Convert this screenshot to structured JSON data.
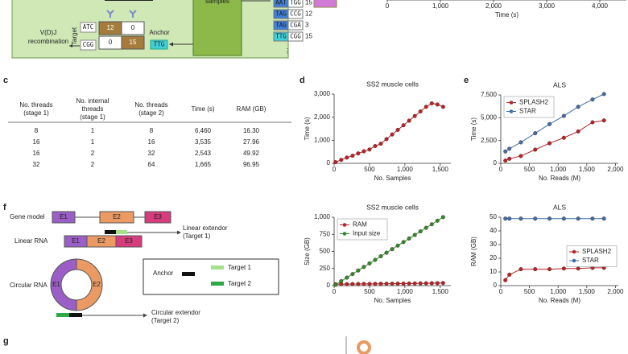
{
  "panel_labels": [
    "c",
    "d",
    "e",
    "f",
    "g"
  ],
  "diagram_a": {
    "recombination": [
      "V(D)J",
      "recombination"
    ],
    "target_label": "Target",
    "target_seqs": [
      "ATC",
      "CGG"
    ],
    "matrix": [
      "12",
      "0",
      "0",
      "15"
    ],
    "anchor_label": "Anchor",
    "anchor_seq": "TTG",
    "samples_label": "samples",
    "seq_rows": [
      [
        "AAT",
        "TGG",
        "15"
      ],
      [
        "TAG",
        "CCG",
        "12"
      ],
      [
        "TAG",
        "CGA",
        "3"
      ],
      [
        "TTG",
        "CGG",
        "15"
      ]
    ],
    "more": "⋮"
  },
  "table": {
    "headers": [
      [
        "No. threads",
        "(stage 1)"
      ],
      [
        "No. internal",
        "threads",
        "(stage 1)"
      ],
      [
        "No. threads",
        "(stage 2)"
      ],
      [
        "Time (s)"
      ],
      [
        "RAM (GB)"
      ]
    ],
    "rows": [
      [
        "8",
        "1",
        "8",
        "6,460",
        "16.30"
      ],
      [
        "16",
        "1",
        "16",
        "3,535",
        "27.96"
      ],
      [
        "16",
        "2",
        "32",
        "2,543",
        "49.92"
      ],
      [
        "32",
        "2",
        "64",
        "1,665",
        "96.95"
      ]
    ]
  },
  "diagram_f": {
    "gene_model": "Gene model",
    "linear_rna": "Linear RNA",
    "circular_rna": "Circular RNA",
    "exons": [
      "E1",
      "E2",
      "E3"
    ],
    "linear_extendor": [
      "Linear extendor",
      "(Target 1)"
    ],
    "circular_extendor": [
      "Circular extendor",
      "(Target 2)"
    ],
    "legend": [
      "Anchor",
      "Target 1",
      "Target 2"
    ]
  },
  "chart_data": [
    {
      "type": "line",
      "xlabel": "Time (s)",
      "xlim": [
        0,
        4500
      ],
      "xticks": [
        0,
        {
          "value": 1000,
          "label": "1,000"
        },
        {
          "value": 2000,
          "label": "2,000"
        },
        {
          "value": 3000,
          "label": "3,000"
        },
        {
          "value": 4000,
          "label": "4,000"
        }
      ],
      "x": [],
      "series": []
    },
    {
      "type": "line",
      "title": "SS2 muscle cells",
      "xlabel": "No. Samples",
      "ylabel": "Time (s)",
      "xlim": [
        0,
        1650
      ],
      "ylim": [
        0,
        3000
      ],
      "xticks": [
        0,
        500,
        {
          "value": 1000,
          "label": "1,000"
        },
        {
          "value": 1500,
          "label": "1,500"
        }
      ],
      "yticks": [
        0,
        {
          "value": 1000,
          "label": "1,000"
        },
        {
          "value": 2000,
          "label": "2,000"
        },
        {
          "value": 3000,
          "label": "3,000"
        }
      ],
      "x": [
        20,
        100,
        180,
        260,
        340,
        420,
        500,
        580,
        660,
        740,
        820,
        900,
        980,
        1060,
        1140,
        1220,
        1300,
        1380,
        1460,
        1540
      ],
      "series": [
        {
          "color": "#b3262b",
          "values": [
            50,
            150,
            250,
            330,
            430,
            520,
            600,
            750,
            850,
            1050,
            1250,
            1450,
            1650,
            1850,
            2050,
            2250,
            2450,
            2600,
            2550,
            2450
          ]
        }
      ]
    },
    {
      "type": "line",
      "title": "SS2 muscle cells",
      "xlabel": "No. Samples",
      "ylabel": "Size (GB)",
      "xlim": [
        0,
        1650
      ],
      "ylim": [
        0,
        1000
      ],
      "legend": "top-left",
      "xticks": [
        0,
        500,
        {
          "value": 1000,
          "label": "1,000"
        },
        {
          "value": 1500,
          "label": "1,500"
        }
      ],
      "yticks": [
        0,
        250,
        500,
        750,
        {
          "value": 1000,
          "label": "1,000"
        }
      ],
      "x": [
        20,
        100,
        180,
        260,
        340,
        420,
        500,
        580,
        660,
        740,
        820,
        900,
        980,
        1060,
        1140,
        1220,
        1300,
        1380,
        1460,
        1540
      ],
      "series": [
        {
          "name": "RAM",
          "color": "#b3262b",
          "values": [
            20,
            22,
            22,
            23,
            24,
            25,
            25,
            26,
            27,
            28,
            28,
            29,
            30,
            31,
            32,
            33,
            34,
            35,
            36,
            38
          ]
        },
        {
          "name": "Input size",
          "color": "#2f8a2f",
          "values": [
            12,
            65,
            117,
            169,
            221,
            273,
            325,
            377,
            429,
            481,
            533,
            585,
            637,
            689,
            741,
            793,
            845,
            897,
            949,
            1001
          ]
        }
      ]
    },
    {
      "type": "line",
      "title": "ALS",
      "xlabel": "No. Reads (M)",
      "ylabel": "Time (s)",
      "xlim": [
        0,
        2050
      ],
      "ylim": [
        0,
        7500
      ],
      "legend": "top-left",
      "xticks": [
        0,
        500,
        {
          "value": 1000,
          "label": "1,000"
        },
        {
          "value": 1500,
          "label": "1,500"
        },
        {
          "value": 2000,
          "label": "2,000"
        }
      ],
      "yticks": [
        0,
        {
          "value": 2500,
          "label": "2,500"
        },
        {
          "value": 5000,
          "label": "5,000"
        },
        {
          "value": 7500,
          "label": "7,500"
        }
      ],
      "x": [
        80,
        150,
        350,
        600,
        850,
        1100,
        1350,
        1600,
        1800
      ],
      "series": [
        {
          "name": "SPLASH2",
          "color": "#b3262b",
          "values": [
            300,
            500,
            800,
            1500,
            2200,
            2800,
            3500,
            4500,
            4700
          ]
        },
        {
          "name": "STAR",
          "color": "#3d6fa8",
          "values": [
            1300,
            1600,
            2300,
            3300,
            4300,
            5200,
            6200,
            7000,
            7600
          ]
        }
      ]
    },
    {
      "type": "line",
      "title": "ALS",
      "xlabel": "No. Reads (M)",
      "ylabel": "RAM (GB)",
      "xlim": [
        0,
        2050
      ],
      "ylim": [
        0,
        50
      ],
      "legend": "right",
      "xticks": [
        0,
        500,
        {
          "value": 1000,
          "label": "1,000"
        },
        {
          "value": 1500,
          "label": "1,500"
        },
        {
          "value": 2000,
          "label": "2,000"
        }
      ],
      "yticks": [
        0,
        10,
        20,
        30,
        40,
        50
      ],
      "x": [
        80,
        150,
        350,
        600,
        850,
        1100,
        1350,
        1600,
        1800
      ],
      "series": [
        {
          "name": "SPLASH2",
          "color": "#b3262b",
          "values": [
            4,
            8,
            12,
            12,
            12,
            12.5,
            12.5,
            13,
            13
          ]
        },
        {
          "name": "STAR",
          "color": "#3d6fa8",
          "values": [
            49,
            49,
            49,
            49,
            49,
            49,
            49,
            49,
            49
          ]
        }
      ]
    }
  ]
}
